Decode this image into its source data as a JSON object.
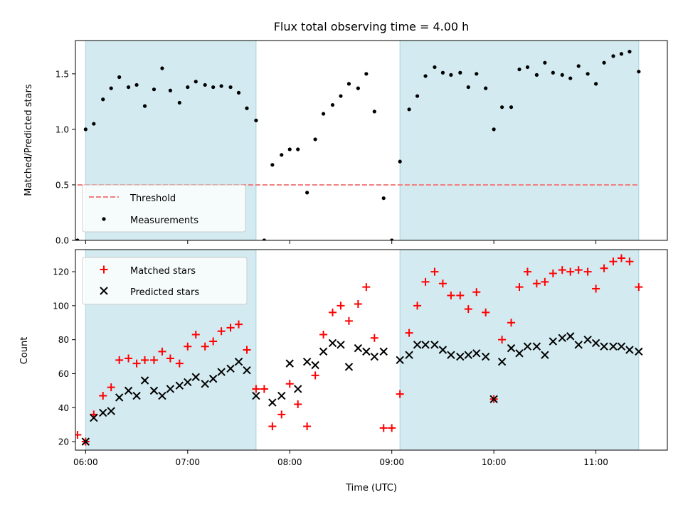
{
  "chart_data": [
    {
      "type": "scatter",
      "title": "Flux total observing time = 4.00 h",
      "ylabel": "Matched/Predicted stars",
      "xlabel": "",
      "xlim": [
        5.9,
        11.7
      ],
      "ylim": [
        0,
        1.8
      ],
      "x_tick_values": [
        6,
        7,
        8,
        9,
        10,
        11
      ],
      "y_ticks": [
        0.0,
        0.5,
        1.0,
        1.5
      ],
      "y_tick_labels": [
        "0.0",
        "0.5",
        "1.0",
        "1.5"
      ],
      "shaded_intervals": [
        [
          6.0,
          7.67
        ],
        [
          9.08,
          11.42
        ]
      ],
      "shade_color": "#d3eaf0",
      "threshold": {
        "name": "Threshold",
        "value": 0.5,
        "x_range": [
          5.92,
          11.42
        ],
        "color": "#f08080"
      },
      "legend": {
        "placement": "lower-left",
        "entries": [
          "Threshold",
          "Measurements"
        ]
      },
      "series": [
        {
          "name": "Measurements",
          "marker": "dot",
          "color": "#000000",
          "points": [
            [
              5.92,
              0.0
            ],
            [
              6.0,
              1.0
            ],
            [
              6.08,
              1.05
            ],
            [
              6.17,
              1.27
            ],
            [
              6.25,
              1.37
            ],
            [
              6.33,
              1.47
            ],
            [
              6.42,
              1.38
            ],
            [
              6.5,
              1.4
            ],
            [
              6.58,
              1.21
            ],
            [
              6.67,
              1.36
            ],
            [
              6.75,
              1.55
            ],
            [
              6.83,
              1.35
            ],
            [
              6.92,
              1.24
            ],
            [
              7.0,
              1.38
            ],
            [
              7.08,
              1.43
            ],
            [
              7.17,
              1.4
            ],
            [
              7.25,
              1.38
            ],
            [
              7.33,
              1.39
            ],
            [
              7.42,
              1.38
            ],
            [
              7.5,
              1.33
            ],
            [
              7.58,
              1.19
            ],
            [
              7.67,
              1.08
            ],
            [
              7.75,
              0.0
            ],
            [
              7.83,
              0.68
            ],
            [
              7.92,
              0.77
            ],
            [
              8.0,
              0.82
            ],
            [
              8.08,
              0.82
            ],
            [
              8.17,
              0.43
            ],
            [
              8.25,
              0.91
            ],
            [
              8.33,
              1.14
            ],
            [
              8.42,
              1.22
            ],
            [
              8.5,
              1.3
            ],
            [
              8.58,
              1.41
            ],
            [
              8.67,
              1.37
            ],
            [
              8.75,
              1.5
            ],
            [
              8.83,
              1.16
            ],
            [
              8.92,
              0.38
            ],
            [
              9.0,
              0.0
            ],
            [
              9.08,
              0.71
            ],
            [
              9.17,
              1.18
            ],
            [
              9.25,
              1.3
            ],
            [
              9.33,
              1.48
            ],
            [
              9.42,
              1.56
            ],
            [
              9.5,
              1.51
            ],
            [
              9.58,
              1.49
            ],
            [
              9.67,
              1.51
            ],
            [
              9.75,
              1.38
            ],
            [
              9.83,
              1.5
            ],
            [
              9.92,
              1.37
            ],
            [
              10.0,
              1.0
            ],
            [
              10.08,
              1.2
            ],
            [
              10.17,
              1.2
            ],
            [
              10.25,
              1.54
            ],
            [
              10.33,
              1.56
            ],
            [
              10.42,
              1.49
            ],
            [
              10.5,
              1.6
            ],
            [
              10.58,
              1.51
            ],
            [
              10.67,
              1.49
            ],
            [
              10.75,
              1.46
            ],
            [
              10.83,
              1.57
            ],
            [
              10.92,
              1.5
            ],
            [
              11.0,
              1.41
            ],
            [
              11.08,
              1.6
            ],
            [
              11.17,
              1.66
            ],
            [
              11.25,
              1.68
            ],
            [
              11.33,
              1.7
            ],
            [
              11.42,
              1.52
            ]
          ]
        }
      ]
    },
    {
      "type": "scatter",
      "title": "",
      "xlabel": "Time (UTC)",
      "ylabel": "Count",
      "xlim": [
        5.9,
        11.7
      ],
      "ylim": [
        15,
        133
      ],
      "x_tick_values": [
        6,
        7,
        8,
        9,
        10,
        11
      ],
      "x_tick_labels": [
        "06:00",
        "07:00",
        "08:00",
        "09:00",
        "10:00",
        "11:00"
      ],
      "y_ticks": [
        20,
        40,
        60,
        80,
        100,
        120
      ],
      "y_tick_labels": [
        "20",
        "40",
        "60",
        "80",
        "100",
        "120"
      ],
      "shaded_intervals": [
        [
          6.0,
          7.67
        ],
        [
          9.08,
          11.42
        ]
      ],
      "shade_color": "#d3eaf0",
      "legend": {
        "placement": "top-left",
        "entries": [
          "Matched stars",
          "Predicted stars"
        ]
      },
      "series": [
        {
          "name": "Matched stars",
          "marker": "plus",
          "color": "#ff0000",
          "points": [
            [
              5.92,
              24
            ],
            [
              6.0,
              20
            ],
            [
              6.08,
              36
            ],
            [
              6.17,
              47
            ],
            [
              6.25,
              52
            ],
            [
              6.33,
              68
            ],
            [
              6.42,
              69
            ],
            [
              6.5,
              66
            ],
            [
              6.58,
              68
            ],
            [
              6.67,
              68
            ],
            [
              6.75,
              73
            ],
            [
              6.83,
              69
            ],
            [
              6.92,
              66
            ],
            [
              7.0,
              76
            ],
            [
              7.08,
              83
            ],
            [
              7.17,
              76
            ],
            [
              7.25,
              79
            ],
            [
              7.33,
              85
            ],
            [
              7.42,
              87
            ],
            [
              7.5,
              89
            ],
            [
              7.58,
              74
            ],
            [
              7.67,
              51
            ],
            [
              7.75,
              51
            ],
            [
              7.83,
              29
            ],
            [
              7.92,
              36
            ],
            [
              8.0,
              54
            ],
            [
              8.08,
              42
            ],
            [
              8.17,
              29
            ],
            [
              8.25,
              59
            ],
            [
              8.33,
              83
            ],
            [
              8.42,
              96
            ],
            [
              8.5,
              100
            ],
            [
              8.58,
              91
            ],
            [
              8.67,
              101
            ],
            [
              8.75,
              111
            ],
            [
              8.83,
              81
            ],
            [
              8.92,
              28
            ],
            [
              9.0,
              28
            ],
            [
              9.08,
              48
            ],
            [
              9.17,
              84
            ],
            [
              9.25,
              100
            ],
            [
              9.33,
              114
            ],
            [
              9.42,
              120
            ],
            [
              9.5,
              113
            ],
            [
              9.58,
              106
            ],
            [
              9.67,
              106
            ],
            [
              9.75,
              98
            ],
            [
              9.83,
              108
            ],
            [
              9.92,
              96
            ],
            [
              10.0,
              45
            ],
            [
              10.08,
              80
            ],
            [
              10.17,
              90
            ],
            [
              10.25,
              111
            ],
            [
              10.33,
              120
            ],
            [
              10.42,
              113
            ],
            [
              10.5,
              114
            ],
            [
              10.58,
              119
            ],
            [
              10.67,
              121
            ],
            [
              10.75,
              120
            ],
            [
              10.83,
              121
            ],
            [
              10.92,
              120
            ],
            [
              11.0,
              110
            ],
            [
              11.08,
              122
            ],
            [
              11.17,
              126
            ],
            [
              11.25,
              128
            ],
            [
              11.33,
              126
            ],
            [
              11.42,
              111
            ]
          ]
        },
        {
          "name": "Predicted stars",
          "marker": "x",
          "color": "#000000",
          "points": [
            [
              6.0,
              20
            ],
            [
              6.08,
              34
            ],
            [
              6.17,
              37
            ],
            [
              6.25,
              38
            ],
            [
              6.33,
              46
            ],
            [
              6.42,
              50
            ],
            [
              6.5,
              47
            ],
            [
              6.58,
              56
            ],
            [
              6.67,
              50
            ],
            [
              6.75,
              47
            ],
            [
              6.83,
              51
            ],
            [
              6.92,
              53
            ],
            [
              7.0,
              55
            ],
            [
              7.08,
              58
            ],
            [
              7.17,
              54
            ],
            [
              7.25,
              57
            ],
            [
              7.33,
              61
            ],
            [
              7.42,
              63
            ],
            [
              7.5,
              67
            ],
            [
              7.58,
              62
            ],
            [
              7.67,
              47
            ],
            [
              7.83,
              43
            ],
            [
              7.92,
              47
            ],
            [
              8.0,
              66
            ],
            [
              8.08,
              51
            ],
            [
              8.17,
              67
            ],
            [
              8.25,
              65
            ],
            [
              8.33,
              73
            ],
            [
              8.42,
              78
            ],
            [
              8.5,
              77
            ],
            [
              8.58,
              64
            ],
            [
              8.67,
              75
            ],
            [
              8.75,
              73
            ],
            [
              8.83,
              70
            ],
            [
              8.92,
              73
            ],
            [
              9.08,
              68
            ],
            [
              9.17,
              71
            ],
            [
              9.25,
              77
            ],
            [
              9.33,
              77
            ],
            [
              9.42,
              77
            ],
            [
              9.5,
              74
            ],
            [
              9.58,
              71
            ],
            [
              9.67,
              70
            ],
            [
              9.75,
              71
            ],
            [
              9.83,
              72
            ],
            [
              9.92,
              70
            ],
            [
              10.0,
              45
            ],
            [
              10.08,
              67
            ],
            [
              10.17,
              75
            ],
            [
              10.25,
              72
            ],
            [
              10.33,
              76
            ],
            [
              10.42,
              76
            ],
            [
              10.5,
              71
            ],
            [
              10.58,
              79
            ],
            [
              10.67,
              81
            ],
            [
              10.75,
              82
            ],
            [
              10.83,
              77
            ],
            [
              10.92,
              80
            ],
            [
              11.0,
              78
            ],
            [
              11.08,
              76
            ],
            [
              11.17,
              76
            ],
            [
              11.25,
              76
            ],
            [
              11.33,
              74
            ],
            [
              11.42,
              73
            ]
          ]
        }
      ]
    }
  ]
}
